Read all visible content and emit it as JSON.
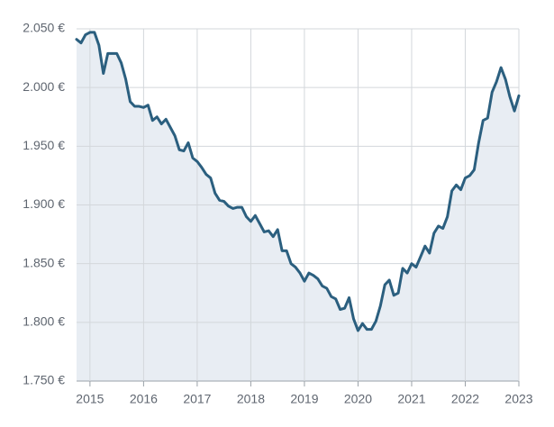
{
  "chart_data": {
    "type": "line",
    "x": [
      2014.75,
      2014.833,
      2014.917,
      2015,
      2015.083,
      2015.167,
      2015.25,
      2015.333,
      2015.417,
      2015.5,
      2015.583,
      2015.667,
      2015.75,
      2015.833,
      2015.917,
      2016,
      2016.083,
      2016.167,
      2016.25,
      2016.333,
      2016.417,
      2016.5,
      2016.583,
      2016.667,
      2016.75,
      2016.833,
      2016.917,
      2017,
      2017.083,
      2017.167,
      2017.25,
      2017.333,
      2017.417,
      2017.5,
      2017.583,
      2017.667,
      2017.75,
      2017.833,
      2017.917,
      2018,
      2018.083,
      2018.167,
      2018.25,
      2018.333,
      2018.417,
      2018.5,
      2018.583,
      2018.667,
      2018.75,
      2018.833,
      2018.917,
      2019,
      2019.083,
      2019.167,
      2019.25,
      2019.333,
      2019.417,
      2019.5,
      2019.583,
      2019.667,
      2019.75,
      2019.833,
      2019.917,
      2020,
      2020.083,
      2020.167,
      2020.25,
      2020.333,
      2020.417,
      2020.5,
      2020.583,
      2020.667,
      2020.75,
      2020.833,
      2020.917,
      2021,
      2021.083,
      2021.167,
      2021.25,
      2021.333,
      2021.417,
      2021.5,
      2021.583,
      2021.667,
      2021.75,
      2021.833,
      2021.917,
      2022,
      2022.083,
      2022.167,
      2022.25,
      2022.333,
      2022.417,
      2022.5,
      2022.583,
      2022.667,
      2022.75,
      2022.833,
      2022.917,
      2023
    ],
    "values": [
      2041,
      2038,
      2045,
      2047,
      2047,
      2036,
      2012,
      2029,
      2029,
      2029,
      2021,
      2007,
      1988,
      1984,
      1984,
      1983,
      1985,
      1972,
      1975,
      1969,
      1973,
      1966,
      1959,
      1947,
      1946,
      1953,
      1940,
      1937,
      1932,
      1926,
      1923,
      1910,
      1904,
      1903,
      1899,
      1897,
      1898,
      1898,
      1890,
      1886,
      1891,
      1884,
      1877,
      1878,
      1873,
      1879,
      1861,
      1861,
      1850,
      1847,
      1842,
      1835,
      1842,
      1840,
      1837,
      1831,
      1829,
      1822,
      1820,
      1811,
      1812,
      1821,
      1803,
      1793,
      1799,
      1794,
      1794,
      1801,
      1814,
      1832,
      1836,
      1823,
      1825,
      1846,
      1842,
      1850,
      1847,
      1856,
      1865,
      1859,
      1876,
      1882,
      1880,
      1890,
      1912,
      1917,
      1913,
      1923,
      1925,
      1930,
      1953,
      1972,
      1974,
      1996,
      2005,
      2017,
      2007,
      1992,
      1980,
      1993
    ],
    "color": "#2b5f7f",
    "fill": "#e8edf3",
    "xlim": [
      2014.75,
      2023
    ],
    "ylim": [
      1750,
      2050
    ],
    "xticks": [
      2015,
      2016,
      2017,
      2018,
      2019,
      2020,
      2021,
      2022,
      2023
    ],
    "yticks": [
      {
        "value": 1750,
        "label": "1.750 €"
      },
      {
        "value": 1800,
        "label": "1.800 €"
      },
      {
        "value": 1850,
        "label": "1.850 €"
      },
      {
        "value": 1900,
        "label": "1.900 €"
      },
      {
        "value": 1950,
        "label": "1.950 €"
      },
      {
        "value": 2000,
        "label": "2.000 €"
      },
      {
        "value": 2050,
        "label": "2.050 €"
      }
    ],
    "grid": true
  }
}
